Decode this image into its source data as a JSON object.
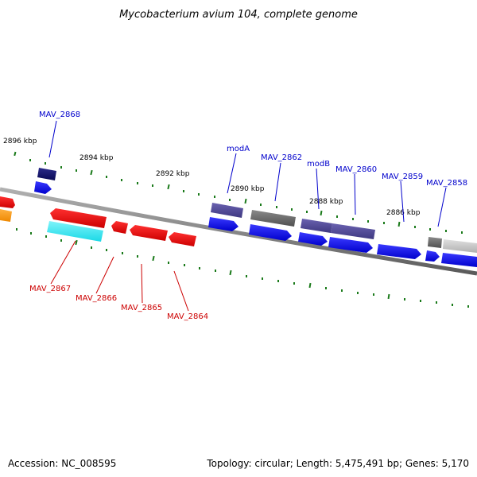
{
  "title": "Mycobacterium avium 104, complete genome",
  "footer": {
    "accession": "Accession: NC_008595",
    "stats": "Topology: circular; Length: 5,475,491 bp; Genes: 5,170"
  },
  "kbp_labels": [
    "2896 kbp",
    "2894 kbp",
    "2892 kbp",
    "2890 kbp",
    "2888 kbp",
    "2886 kbp"
  ],
  "gene_labels_top": [
    "MAV_2868",
    "modA",
    "MAV_2862",
    "modB",
    "MAV_2860",
    "MAV_2859",
    "MAV_2858"
  ],
  "gene_labels_bottom": [
    "MAV_2867",
    "MAV_2866",
    "MAV_2865",
    "MAV_2864"
  ],
  "colors": {
    "forward_cds": "#0000ee",
    "reverse_cds": "#ee0000",
    "navy": "#0a0a66",
    "purple": "#4b4490",
    "gray": "#666666",
    "light_gray": "#c8c8c8",
    "cyan": "#33e6f0",
    "orange": "#ff9900",
    "tick": "#1a7a1a",
    "backbone": "#808080"
  }
}
